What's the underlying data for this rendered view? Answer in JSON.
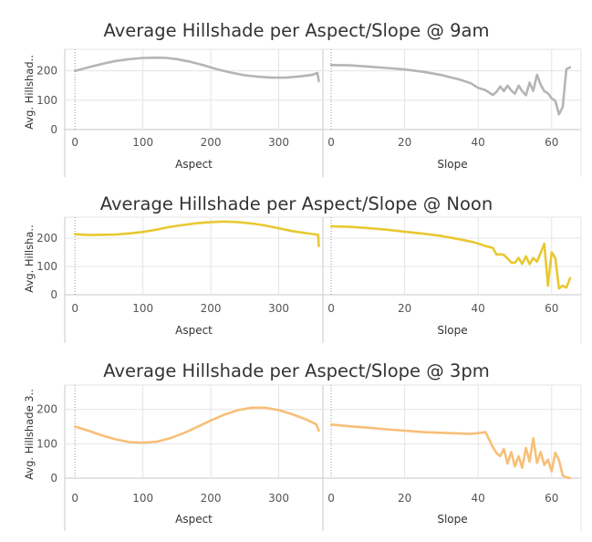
{
  "chart_data": [
    {
      "type": "line",
      "title": "Average Hillshade per Aspect/Slope @ 9am",
      "ylabel": "Avg. Hillshad..",
      "color": "#b5b5b5",
      "ylim": [
        0,
        255
      ],
      "yticks": [
        0,
        100,
        200
      ],
      "grid": true,
      "panels": [
        {
          "xlabel": "Aspect",
          "xlim": [
            -15,
            365
          ],
          "xticks": [
            0,
            100,
            200,
            300
          ],
          "x": [
            0,
            20,
            40,
            60,
            80,
            100,
            120,
            135,
            150,
            170,
            190,
            210,
            230,
            250,
            270,
            290,
            310,
            330,
            350,
            357,
            359
          ],
          "y": [
            200,
            212,
            224,
            234,
            240,
            244,
            245,
            244,
            240,
            231,
            219,
            205,
            194,
            185,
            180,
            177,
            177,
            181,
            187,
            193,
            165
          ]
        },
        {
          "xlabel": "Slope",
          "xlim": [
            -2,
            68
          ],
          "xticks": [
            0,
            20,
            40,
            60
          ],
          "x": [
            0,
            5,
            10,
            15,
            20,
            25,
            30,
            35,
            38,
            40,
            42,
            44,
            45,
            46,
            47,
            48,
            49,
            50,
            51,
            52,
            53,
            54,
            55,
            56,
            57,
            58,
            59,
            60,
            61,
            62,
            63,
            64,
            65
          ],
          "y": [
            220,
            219,
            215,
            210,
            205,
            197,
            186,
            170,
            158,
            142,
            134,
            118,
            128,
            147,
            131,
            150,
            133,
            122,
            150,
            131,
            117,
            160,
            132,
            187,
            153,
            131,
            124,
            106,
            98,
            52,
            77,
            206,
            212
          ]
        }
      ]
    },
    {
      "type": "line",
      "title": "Average Hillshade per Aspect/Slope @ Noon",
      "ylabel": "Avg. Hillsha..",
      "color": "#e8c832",
      "ylim": [
        0,
        255
      ],
      "yticks": [
        0,
        100,
        200
      ],
      "grid": true,
      "panels": [
        {
          "xlabel": "Aspect",
          "xlim": [
            -15,
            365
          ],
          "xticks": [
            0,
            100,
            200,
            300
          ],
          "x": [
            0,
            20,
            40,
            60,
            80,
            100,
            120,
            140,
            160,
            180,
            200,
            220,
            240,
            260,
            280,
            300,
            320,
            340,
            355,
            358,
            359
          ],
          "y": [
            214,
            211,
            212,
            213,
            217,
            222,
            230,
            240,
            247,
            253,
            257,
            259,
            257,
            252,
            245,
            235,
            225,
            218,
            213,
            212,
            172
          ]
        },
        {
          "xlabel": "Slope",
          "xlim": [
            -2,
            68
          ],
          "xticks": [
            0,
            20,
            40,
            60
          ],
          "x": [
            0,
            5,
            10,
            15,
            20,
            25,
            30,
            35,
            38,
            40,
            42,
            44,
            45,
            46,
            47,
            48,
            49,
            50,
            51,
            52,
            53,
            54,
            55,
            56,
            57,
            58,
            59,
            60,
            61,
            62,
            63,
            64,
            65
          ],
          "y": [
            242,
            240,
            236,
            230,
            223,
            216,
            208,
            196,
            188,
            181,
            172,
            166,
            142,
            143,
            141,
            128,
            114,
            113,
            130,
            109,
            136,
            108,
            130,
            117,
            148,
            180,
            32,
            150,
            130,
            22,
            32,
            25,
            58
          ]
        }
      ]
    },
    {
      "type": "line",
      "title": "Average Hillshade per Aspect/Slope @ 3pm",
      "ylabel": "Avg. Hillshade 3..",
      "color": "#f8bf78",
      "ylim": [
        0,
        255
      ],
      "yticks": [
        0,
        100,
        200
      ],
      "grid": true,
      "panels": [
        {
          "xlabel": "Aspect",
          "xlim": [
            -15,
            365
          ],
          "xticks": [
            0,
            100,
            200,
            300
          ],
          "x": [
            0,
            20,
            40,
            60,
            80,
            100,
            120,
            140,
            160,
            180,
            200,
            220,
            240,
            260,
            280,
            300,
            320,
            340,
            355,
            359
          ],
          "y": [
            150,
            138,
            124,
            113,
            105,
            103,
            106,
            116,
            131,
            149,
            168,
            185,
            198,
            205,
            205,
            198,
            186,
            171,
            157,
            138
          ]
        },
        {
          "xlabel": "Slope",
          "xlim": [
            -2,
            68
          ],
          "xticks": [
            0,
            20,
            40,
            60
          ],
          "x": [
            0,
            5,
            10,
            15,
            20,
            25,
            30,
            35,
            38,
            40,
            42,
            44,
            45,
            46,
            47,
            48,
            49,
            50,
            51,
            52,
            53,
            54,
            55,
            56,
            57,
            58,
            59,
            60,
            61,
            62,
            63,
            64,
            65
          ],
          "y": [
            156,
            151,
            147,
            142,
            138,
            134,
            132,
            130,
            129,
            131,
            134,
            90,
            73,
            64,
            85,
            42,
            76,
            34,
            64,
            30,
            88,
            48,
            116,
            44,
            76,
            38,
            54,
            20,
            74,
            52,
            8,
            2,
            0
          ]
        }
      ]
    }
  ]
}
